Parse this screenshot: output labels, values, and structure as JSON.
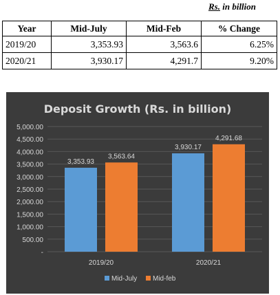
{
  "unit_note": "Rs. in billion",
  "table": {
    "headers": [
      "Year",
      "Mid-July",
      "Mid-Feb",
      "% Change"
    ],
    "rows": [
      [
        "2019/20",
        "3,353.93",
        "3,563.6",
        "6.25%"
      ],
      [
        "2020/21",
        "3,930.17",
        "4,291.7",
        "9.20%"
      ]
    ]
  },
  "chart_data": {
    "type": "bar",
    "title": "Deposit Growth (Rs. in billion)",
    "categories": [
      "2019/20",
      "2020/21"
    ],
    "series": [
      {
        "name": "Mid-July",
        "values": [
          3353.93,
          3930.17
        ],
        "labels": [
          "3,353.93",
          "3,930.17"
        ],
        "color": "#5b9bd5"
      },
      {
        "name": "Mid-feb",
        "values": [
          3563.64,
          4291.68
        ],
        "labels": [
          "3,563.64",
          "4,291.68"
        ],
        "color": "#ed7d31"
      }
    ],
    "ylim": [
      0,
      5000
    ],
    "yticks": [
      "-",
      "500.00",
      "1,000.00",
      "1,500.00",
      "2,000.00",
      "2,500.00",
      "3,000.00",
      "3,500.00",
      "4,000.00",
      "4,500.00",
      "5,000.00"
    ],
    "grid": true,
    "legend_position": "bottom",
    "colors": {
      "background": "#3b3b3b",
      "text": "#d9d9d9",
      "grid": "#595959"
    }
  }
}
